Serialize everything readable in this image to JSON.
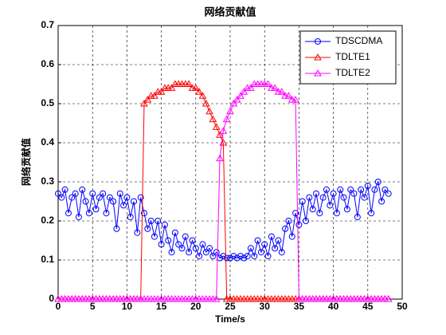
{
  "chart_data": {
    "type": "line",
    "title": "网络贡献值",
    "xlabel": "Time/s",
    "ylabel": "网络贡献值",
    "x": [
      0,
      0.5,
      1,
      1.5,
      2,
      2.5,
      3,
      3.5,
      4,
      4.5,
      5,
      5.5,
      6,
      6.5,
      7,
      7.5,
      8,
      8.5,
      9,
      9.5,
      10,
      10.5,
      11,
      11.5,
      12,
      12.5,
      13,
      13.5,
      14,
      14.5,
      15,
      15.5,
      16,
      16.5,
      17,
      17.5,
      18,
      18.5,
      19,
      19.5,
      20,
      20.5,
      21,
      21.5,
      22,
      22.5,
      23,
      23.5,
      24,
      24.5,
      25,
      25.5,
      26,
      26.5,
      27,
      27.5,
      28,
      28.5,
      29,
      29.5,
      30,
      30.5,
      31,
      31.5,
      32,
      32.5,
      33,
      33.5,
      34,
      34.5,
      35,
      35.5,
      36,
      36.5,
      37,
      37.5,
      38,
      38.5,
      39,
      39.5,
      40,
      40.5,
      41,
      41.5,
      42,
      42.5,
      43,
      43.5,
      44,
      44.5,
      45,
      45.5,
      46,
      46.5,
      47,
      47.5,
      48
    ],
    "series": [
      {
        "name": "TDSCDMA",
        "color": "#0000ff",
        "marker": "o",
        "values": [
          0.27,
          0.26,
          0.28,
          0.22,
          0.26,
          0.27,
          0.21,
          0.28,
          0.25,
          0.22,
          0.27,
          0.23,
          0.26,
          0.27,
          0.22,
          0.26,
          0.25,
          0.18,
          0.27,
          0.24,
          0.26,
          0.21,
          0.25,
          0.17,
          0.26,
          0.22,
          0.18,
          0.2,
          0.16,
          0.2,
          0.14,
          0.19,
          0.15,
          0.12,
          0.17,
          0.14,
          0.13,
          0.16,
          0.12,
          0.15,
          0.13,
          0.11,
          0.14,
          0.12,
          0.13,
          0.11,
          0.12,
          0.105,
          0.11,
          0.105,
          0.105,
          0.11,
          0.105,
          0.11,
          0.105,
          0.11,
          0.13,
          0.11,
          0.15,
          0.12,
          0.14,
          0.11,
          0.16,
          0.13,
          0.15,
          0.12,
          0.18,
          0.2,
          0.16,
          0.22,
          0.19,
          0.25,
          0.2,
          0.26,
          0.23,
          0.27,
          0.22,
          0.26,
          0.28,
          0.24,
          0.27,
          0.22,
          0.28,
          0.26,
          0.23,
          0.28,
          0.27,
          0.21,
          0.28,
          0.26,
          0.29,
          0.22,
          0.28,
          0.3,
          0.25,
          0.28,
          0.27
        ]
      },
      {
        "name": "TDLTE1",
        "color": "#ff0000",
        "marker": "^",
        "values": [
          0,
          0,
          0,
          0,
          0,
          0,
          0,
          0,
          0,
          0,
          0,
          0,
          0,
          0,
          0,
          0,
          0,
          0,
          0,
          0,
          0,
          0,
          0,
          0,
          0,
          0.5,
          0.51,
          0.52,
          0.52,
          0.53,
          0.53,
          0.54,
          0.54,
          0.54,
          0.55,
          0.55,
          0.55,
          0.55,
          0.55,
          0.54,
          0.54,
          0.53,
          0.52,
          0.5,
          0.48,
          0.46,
          0.44,
          0.42,
          0.4,
          0,
          0,
          0,
          0,
          0,
          0,
          0,
          0,
          0,
          0,
          0,
          0,
          0,
          0,
          0,
          0,
          0,
          0,
          0,
          0,
          0,
          0,
          0,
          0,
          0,
          0,
          0,
          0,
          0,
          0,
          0,
          0,
          0,
          0,
          0,
          0,
          0,
          0,
          0,
          0,
          0,
          0,
          0,
          0,
          0,
          0,
          0,
          0
        ]
      },
      {
        "name": "TDLTE2",
        "color": "#ff00ff",
        "marker": "^",
        "values": [
          0,
          0,
          0,
          0,
          0,
          0,
          0,
          0,
          0,
          0,
          0,
          0,
          0,
          0,
          0,
          0,
          0,
          0,
          0,
          0,
          0,
          0,
          0,
          0,
          0,
          0,
          0,
          0,
          0,
          0,
          0,
          0,
          0,
          0,
          0,
          0,
          0,
          0,
          0,
          0,
          0,
          0,
          0,
          0,
          0,
          0,
          0,
          0.36,
          0.43,
          0.46,
          0.48,
          0.5,
          0.51,
          0.52,
          0.53,
          0.54,
          0.54,
          0.55,
          0.55,
          0.55,
          0.55,
          0.55,
          0.54,
          0.54,
          0.53,
          0.53,
          0.52,
          0.52,
          0.51,
          0.51,
          0,
          0,
          0,
          0,
          0,
          0,
          0,
          0,
          0,
          0,
          0,
          0,
          0,
          0,
          0,
          0,
          0,
          0,
          0,
          0,
          0,
          0,
          0,
          0,
          0,
          0,
          0
        ]
      }
    ],
    "xlim": [
      0,
      50
    ],
    "xticks": [
      0,
      5,
      10,
      15,
      20,
      25,
      30,
      35,
      40,
      45,
      50
    ],
    "ylim": [
      0,
      0.7
    ],
    "yticks": [
      0,
      0.1,
      0.2,
      0.3,
      0.4,
      0.5,
      0.6,
      0.7
    ],
    "grid": true,
    "legend": "upper right"
  }
}
